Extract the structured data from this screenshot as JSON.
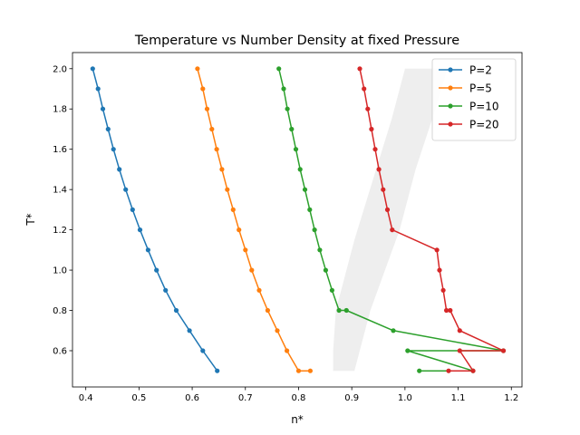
{
  "chart_data": {
    "type": "line",
    "title": "Temperature vs Number Density at fixed Pressure",
    "xlabel": "n*",
    "ylabel": "T*",
    "xlim": [
      0.375,
      1.22
    ],
    "ylim": [
      0.42,
      2.08
    ],
    "xticks": [
      0.4,
      0.5,
      0.6,
      0.7,
      0.8,
      0.9,
      1.0,
      1.1,
      1.2
    ],
    "yticks": [
      0.6,
      0.8,
      1.0,
      1.2,
      1.4,
      1.6,
      1.8,
      2.0
    ],
    "xtick_labels": [
      "0.4",
      "0.5",
      "0.6",
      "0.7",
      "0.8",
      "0.9",
      "1.0",
      "1.1",
      "1.2"
    ],
    "ytick_labels": [
      "0.6",
      "0.8",
      "1.0",
      "1.2",
      "1.4",
      "1.6",
      "1.8",
      "2.0"
    ],
    "grid": false,
    "legend_position": "top-right",
    "shaded_region": {
      "color": "#eeeeee",
      "polygon": [
        [
          0.865,
          0.5
        ],
        [
          0.905,
          0.5
        ],
        [
          0.935,
          0.8
        ],
        [
          0.99,
          1.2
        ],
        [
          1.02,
          1.5
        ],
        [
          1.055,
          1.78
        ],
        [
          1.08,
          2.0
        ],
        [
          1.0,
          2.0
        ],
        [
          0.975,
          1.75
        ],
        [
          0.94,
          1.45
        ],
        [
          0.905,
          1.15
        ],
        [
          0.87,
          0.8
        ],
        [
          0.865,
          0.6
        ]
      ]
    },
    "series": [
      {
        "name": "P=2",
        "color": "#1f77b4",
        "x": [
          0.413,
          0.423,
          0.432,
          0.442,
          0.452,
          0.463,
          0.475,
          0.488,
          0.502,
          0.517,
          0.533,
          0.55,
          0.57,
          0.595,
          0.62,
          0.647
        ],
        "y": [
          2.0,
          1.9,
          1.8,
          1.7,
          1.6,
          1.5,
          1.4,
          1.3,
          1.2,
          1.1,
          1.0,
          0.9,
          0.8,
          0.7,
          0.6,
          0.5
        ]
      },
      {
        "name": "P=5",
        "color": "#ff7f0e",
        "x": [
          0.61,
          0.62,
          0.628,
          0.637,
          0.646,
          0.656,
          0.666,
          0.677,
          0.688,
          0.7,
          0.712,
          0.726,
          0.742,
          0.76,
          0.778,
          0.8,
          0.822
        ],
        "y": [
          2.0,
          1.9,
          1.8,
          1.7,
          1.6,
          1.5,
          1.4,
          1.3,
          1.2,
          1.1,
          1.0,
          0.9,
          0.8,
          0.7,
          0.6,
          0.5,
          0.5
        ]
      },
      {
        "name": "P=10",
        "color": "#2ca02c",
        "x": [
          0.763,
          0.772,
          0.779,
          0.787,
          0.795,
          0.803,
          0.812,
          0.821,
          0.83,
          0.84,
          0.851,
          0.863,
          0.876,
          0.89,
          0.978,
          1.185,
          1.005,
          1.128,
          1.027
        ],
        "y": [
          2.0,
          1.9,
          1.8,
          1.7,
          1.6,
          1.5,
          1.4,
          1.3,
          1.2,
          1.1,
          1.0,
          0.9,
          0.8,
          0.8,
          0.7,
          0.6,
          0.6,
          0.5,
          0.5
        ]
      },
      {
        "name": "P=20",
        "color": "#d62728",
        "x": [
          0.915,
          0.923,
          0.93,
          0.937,
          0.944,
          0.951,
          0.959,
          0.967,
          0.976,
          1.06,
          1.065,
          1.072,
          1.078,
          1.085,
          1.103,
          1.185,
          1.103,
          1.128,
          1.082
        ],
        "y": [
          2.0,
          1.9,
          1.8,
          1.7,
          1.6,
          1.5,
          1.4,
          1.3,
          1.2,
          1.1,
          1.0,
          0.9,
          0.8,
          0.8,
          0.7,
          0.6,
          0.6,
          0.5,
          0.5
        ]
      }
    ]
  }
}
